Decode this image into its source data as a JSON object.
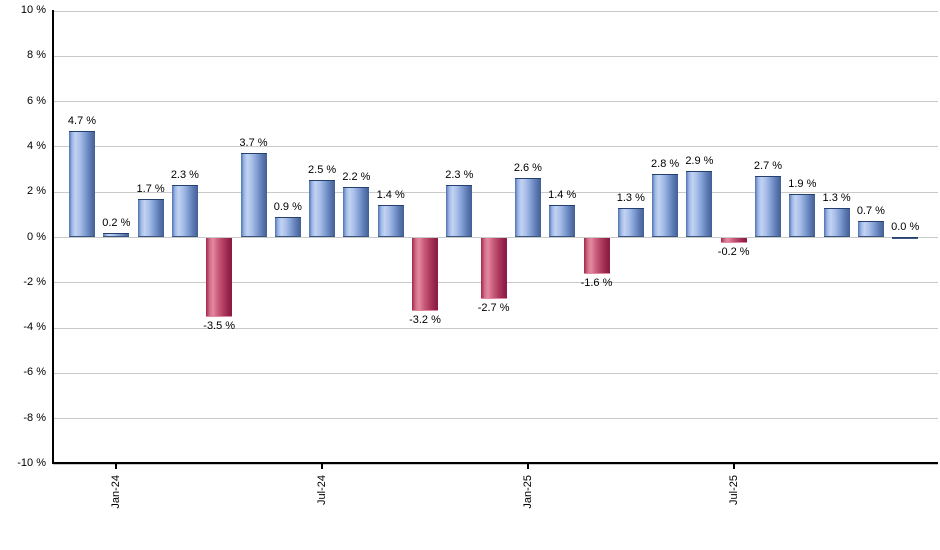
{
  "chart_data": {
    "type": "bar",
    "title": "",
    "xlabel": "",
    "ylabel": "",
    "ylim": [
      -10,
      10
    ],
    "grid": true,
    "legend": false,
    "y_tick_values": [
      10,
      8,
      6,
      4,
      2,
      0,
      -2,
      -4,
      -6,
      -8,
      -10
    ],
    "y_ticks": [
      "10 %",
      "8 %",
      "6 %",
      "4 %",
      "2 %",
      "0 %",
      "-2 %",
      "-4 %",
      "-6 %",
      "-8 %",
      "-10 %"
    ],
    "x_ticks": [
      {
        "label": "Jan-24",
        "bar_index": 1
      },
      {
        "label": "Jul-24",
        "bar_index": 7
      },
      {
        "label": "Jan-25",
        "bar_index": 13
      },
      {
        "label": "Jul-25",
        "bar_index": 19
      }
    ],
    "values": [
      4.7,
      0.2,
      1.7,
      2.3,
      -3.5,
      3.7,
      0.9,
      2.5,
      2.2,
      1.4,
      -3.2,
      2.3,
      -2.7,
      2.6,
      1.4,
      -1.6,
      1.3,
      2.8,
      2.9,
      -0.2,
      2.7,
      1.9,
      1.3,
      0.7,
      0.0
    ],
    "bar_labels": [
      "4.7 %",
      "0.2 %",
      "1.7 %",
      "2.3 %",
      "-3.5 %",
      "3.7 %",
      "0.9 %",
      "2.5 %",
      "2.2 %",
      "1.4 %",
      "-3.2 %",
      "2.3 %",
      "-2.7 %",
      "2.6 %",
      "1.4 %",
      "-1.6 %",
      "1.3 %",
      "2.8 %",
      "2.9 %",
      "-0.2 %",
      "2.7 %",
      "1.9 %",
      "1.3 %",
      "0.7 %",
      "0.0 %"
    ],
    "colors": {
      "positive_bar": "#7b9ad4",
      "negative_bar": "#bb3a60",
      "grid": "#c9c9c9",
      "axis": "#000000",
      "label_text": "#000000"
    }
  }
}
